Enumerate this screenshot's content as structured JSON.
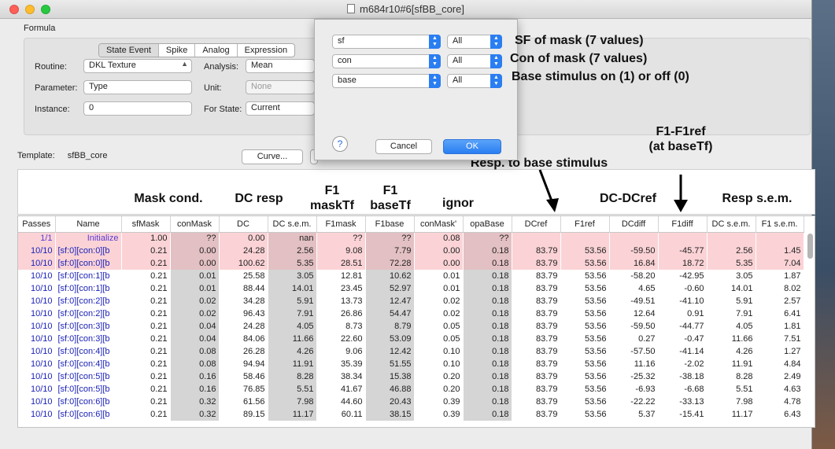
{
  "window": {
    "title": "m684r10#6[sfBB_core]",
    "traffic_colors": [
      "#ff5f57",
      "#ffbd2e",
      "#28c940"
    ]
  },
  "formula": {
    "label": "Formula",
    "tabs": [
      "State Event",
      "Spike",
      "Analog",
      "Expression"
    ],
    "active_tab": "State Event",
    "fields": {
      "routine_label": "Routine:",
      "routine_value": "DKL Texture",
      "parameter_label": "Parameter:",
      "parameter_value": "Type",
      "instance_label": "Instance:",
      "instance_value": "0",
      "analysis_label": "Analysis:",
      "analysis_value": "Mean",
      "unit_label": "Unit:",
      "unit_value": "None",
      "for_state_label": "For State:",
      "for_state_value": "Current"
    }
  },
  "template": {
    "label": "Template:",
    "value": "sfBB_core"
  },
  "buttons": {
    "curve": "Curve..."
  },
  "dialog": {
    "rows": [
      {
        "param": "sf",
        "value": "All"
      },
      {
        "param": "con",
        "value": "All"
      },
      {
        "param": "base",
        "value": "All"
      }
    ],
    "cancel": "Cancel",
    "ok": "OK",
    "help": "?"
  },
  "annotations": {
    "sf_mask": "SF of mask (7 values)",
    "con_mask": "Con of mask (7 values)",
    "base": "Base stimulus on (1) or off (0)",
    "mask_cond": "Mask cond.",
    "dc_resp": "DC resp",
    "f1_mask_tf": "F1 maskTf",
    "f1_base_tf": "F1 baseTf",
    "ignor": "ignor",
    "resp_base": "Resp. to base stimulus",
    "dc_dcref": "DC-DCref",
    "f1_f1ref": "F1-F1ref (at baseTf)",
    "resp_sem": "Resp s.e.m."
  },
  "table": {
    "columns": [
      "Passes",
      "Name",
      "sfMask",
      "conMask",
      "DC",
      "DC s.e.m.",
      "F1mask",
      "F1base",
      "conMask'",
      "opaBase",
      "DCref",
      "F1ref",
      "DCdiff",
      "F1diff",
      "DC s.e.m.",
      "F1 s.e.m."
    ],
    "rows": [
      [
        "1/1",
        "Initialize",
        "1.00",
        "??",
        "0.00",
        "nan",
        "??",
        "??",
        "0.08",
        "??",
        "",
        "",
        "",
        "",
        "",
        ""
      ],
      [
        "10/10",
        "[sf:0][con:0][b",
        "0.21",
        "0.00",
        "24.28",
        "2.56",
        "9.08",
        "7.79",
        "0.00",
        "0.18",
        "83.79",
        "53.56",
        "-59.50",
        "-45.77",
        "2.56",
        "1.45"
      ],
      [
        "10/10",
        "[sf:0][con:0][b",
        "0.21",
        "0.00",
        "100.62",
        "5.35",
        "28.51",
        "72.28",
        "0.00",
        "0.18",
        "83.79",
        "53.56",
        "16.84",
        "18.72",
        "5.35",
        "7.04"
      ],
      [
        "10/10",
        "[sf:0][con:1][b",
        "0.21",
        "0.01",
        "25.58",
        "3.05",
        "12.81",
        "10.62",
        "0.01",
        "0.18",
        "83.79",
        "53.56",
        "-58.20",
        "-42.95",
        "3.05",
        "1.87"
      ],
      [
        "10/10",
        "[sf:0][con:1][b",
        "0.21",
        "0.01",
        "88.44",
        "14.01",
        "23.45",
        "52.97",
        "0.01",
        "0.18",
        "83.79",
        "53.56",
        "4.65",
        "-0.60",
        "14.01",
        "8.02"
      ],
      [
        "10/10",
        "[sf:0][con:2][b",
        "0.21",
        "0.02",
        "34.28",
        "5.91",
        "13.73",
        "12.47",
        "0.02",
        "0.18",
        "83.79",
        "53.56",
        "-49.51",
        "-41.10",
        "5.91",
        "2.57"
      ],
      [
        "10/10",
        "[sf:0][con:2][b",
        "0.21",
        "0.02",
        "96.43",
        "7.91",
        "26.86",
        "54.47",
        "0.02",
        "0.18",
        "83.79",
        "53.56",
        "12.64",
        "0.91",
        "7.91",
        "6.41"
      ],
      [
        "10/10",
        "[sf:0][con:3][b",
        "0.21",
        "0.04",
        "24.28",
        "4.05",
        "8.73",
        "8.79",
        "0.05",
        "0.18",
        "83.79",
        "53.56",
        "-59.50",
        "-44.77",
        "4.05",
        "1.81"
      ],
      [
        "10/10",
        "[sf:0][con:3][b",
        "0.21",
        "0.04",
        "84.06",
        "11.66",
        "22.60",
        "53.09",
        "0.05",
        "0.18",
        "83.79",
        "53.56",
        "0.27",
        "-0.47",
        "11.66",
        "7.51"
      ],
      [
        "10/10",
        "[sf:0][con:4][b",
        "0.21",
        "0.08",
        "26.28",
        "4.26",
        "9.06",
        "12.42",
        "0.10",
        "0.18",
        "83.79",
        "53.56",
        "-57.50",
        "-41.14",
        "4.26",
        "1.27"
      ],
      [
        "10/10",
        "[sf:0][con:4][b",
        "0.21",
        "0.08",
        "94.94",
        "11.91",
        "35.39",
        "51.55",
        "0.10",
        "0.18",
        "83.79",
        "53.56",
        "11.16",
        "-2.02",
        "11.91",
        "4.84"
      ],
      [
        "10/10",
        "[sf:0][con:5][b",
        "0.21",
        "0.16",
        "58.46",
        "8.28",
        "38.34",
        "15.38",
        "0.20",
        "0.18",
        "83.79",
        "53.56",
        "-25.32",
        "-38.18",
        "8.28",
        "2.49"
      ],
      [
        "10/10",
        "[sf:0][con:5][b",
        "0.21",
        "0.16",
        "76.85",
        "5.51",
        "41.67",
        "46.88",
        "0.20",
        "0.18",
        "83.79",
        "53.56",
        "-6.93",
        "-6.68",
        "5.51",
        "4.63"
      ],
      [
        "10/10",
        "[sf:0][con:6][b",
        "0.21",
        "0.32",
        "61.56",
        "7.98",
        "44.60",
        "20.43",
        "0.39",
        "0.18",
        "83.79",
        "53.56",
        "-22.22",
        "-33.13",
        "7.98",
        "4.78"
      ],
      [
        "10/10",
        "[sf:0][con:6][b",
        "0.21",
        "0.32",
        "89.15",
        "11.17",
        "60.11",
        "38.15",
        "0.39",
        "0.18",
        "83.79",
        "53.56",
        "5.37",
        "-15.41",
        "11.17",
        "6.43"
      ]
    ],
    "highlighted_rows": [
      0,
      1,
      2
    ]
  },
  "colors": {
    "row_highlight": "#fbd3d6",
    "name_blue": "#1c22b8",
    "ok_blue": "#2a7ef2"
  }
}
